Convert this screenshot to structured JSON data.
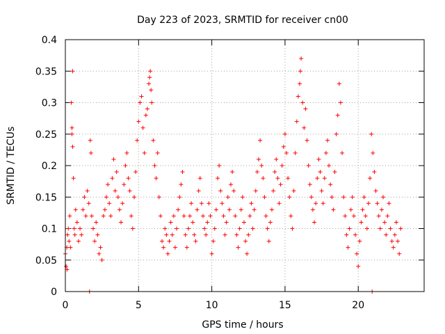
{
  "chart_data": {
    "type": "scatter",
    "title": "Day 223 of 2023, SRMTID for receiver cn00",
    "xlabel": "GPS time / hours",
    "ylabel": "SRMTID / TECUs",
    "xlim": [
      0,
      24.5
    ],
    "ylim": [
      0,
      0.4
    ],
    "xticks": [
      0,
      5,
      10,
      15,
      20
    ],
    "xtick_labels": [
      "0",
      "5",
      "10",
      "15",
      "20"
    ],
    "yticks": [
      0,
      0.05,
      0.1,
      0.15,
      0.2,
      0.25,
      0.3,
      0.35,
      0.4
    ],
    "ytick_labels": [
      "0",
      "0.05",
      "0.1",
      "0.15",
      "0.2",
      "0.25",
      "0.3",
      "0.35",
      "0.4"
    ],
    "grid": true,
    "marker": "plus",
    "series": [
      {
        "name": "cn00",
        "color": "#ff0000",
        "points": [
          [
            0.0,
            0.06
          ],
          [
            0.05,
            0.04
          ],
          [
            0.1,
            0.07
          ],
          [
            0.12,
            0.035
          ],
          [
            0.15,
            0.09
          ],
          [
            0.2,
            0.1
          ],
          [
            0.25,
            0.08
          ],
          [
            0.3,
            0.12
          ],
          [
            0.35,
            0.07
          ],
          [
            0.4,
            0.3
          ],
          [
            0.45,
            0.26
          ],
          [
            0.45,
            0.25
          ],
          [
            0.5,
            0.35
          ],
          [
            0.5,
            0.23
          ],
          [
            0.55,
            0.18
          ],
          [
            0.6,
            0.1
          ],
          [
            0.65,
            0.09
          ],
          [
            0.7,
            0.13
          ],
          [
            0.8,
            0.11
          ],
          [
            0.9,
            0.08
          ],
          [
            1.0,
            0.1
          ],
          [
            1.1,
            0.09
          ],
          [
            1.2,
            0.13
          ],
          [
            1.3,
            0.15
          ],
          [
            1.4,
            0.12
          ],
          [
            1.5,
            0.16
          ],
          [
            1.6,
            0.14
          ],
          [
            1.65,
            0.0
          ],
          [
            1.7,
            0.24
          ],
          [
            1.75,
            0.22
          ],
          [
            1.8,
            0.12
          ],
          [
            1.9,
            0.1
          ],
          [
            2.0,
            0.08
          ],
          [
            2.1,
            0.11
          ],
          [
            2.2,
            0.09
          ],
          [
            2.3,
            0.06
          ],
          [
            2.4,
            0.07
          ],
          [
            2.5,
            0.05
          ],
          [
            2.6,
            0.12
          ],
          [
            2.7,
            0.13
          ],
          [
            2.8,
            0.15
          ],
          [
            2.9,
            0.17
          ],
          [
            3.0,
            0.14
          ],
          [
            3.1,
            0.12
          ],
          [
            3.2,
            0.18
          ],
          [
            3.3,
            0.21
          ],
          [
            3.4,
            0.16
          ],
          [
            3.5,
            0.19
          ],
          [
            3.6,
            0.15
          ],
          [
            3.7,
            0.13
          ],
          [
            3.8,
            0.11
          ],
          [
            3.9,
            0.14
          ],
          [
            4.0,
            0.17
          ],
          [
            4.1,
            0.2
          ],
          [
            4.2,
            0.22
          ],
          [
            4.3,
            0.18
          ],
          [
            4.4,
            0.16
          ],
          [
            4.5,
            0.12
          ],
          [
            4.6,
            0.1
          ],
          [
            4.7,
            0.15
          ],
          [
            4.8,
            0.19
          ],
          [
            4.9,
            0.24
          ],
          [
            5.0,
            0.27
          ],
          [
            5.1,
            0.3
          ],
          [
            5.2,
            0.31
          ],
          [
            5.3,
            0.26
          ],
          [
            5.4,
            0.22
          ],
          [
            5.5,
            0.28
          ],
          [
            5.6,
            0.29
          ],
          [
            5.7,
            0.33
          ],
          [
            5.75,
            0.34
          ],
          [
            5.8,
            0.35
          ],
          [
            5.85,
            0.32
          ],
          [
            5.9,
            0.3
          ],
          [
            6.0,
            0.24
          ],
          [
            6.1,
            0.2
          ],
          [
            6.2,
            0.18
          ],
          [
            6.3,
            0.22
          ],
          [
            6.4,
            0.15
          ],
          [
            6.5,
            0.12
          ],
          [
            6.6,
            0.08
          ],
          [
            6.7,
            0.07
          ],
          [
            6.8,
            0.1
          ],
          [
            6.9,
            0.09
          ],
          [
            7.0,
            0.06
          ],
          [
            7.1,
            0.08
          ],
          [
            7.2,
            0.11
          ],
          [
            7.3,
            0.09
          ],
          [
            7.4,
            0.12
          ],
          [
            7.5,
            0.07
          ],
          [
            7.6,
            0.1
          ],
          [
            7.7,
            0.13
          ],
          [
            7.8,
            0.15
          ],
          [
            7.9,
            0.17
          ],
          [
            8.0,
            0.19
          ],
          [
            8.1,
            0.12
          ],
          [
            8.2,
            0.09
          ],
          [
            8.3,
            0.07
          ],
          [
            8.4,
            0.1
          ],
          [
            8.5,
            0.12
          ],
          [
            8.6,
            0.14
          ],
          [
            8.7,
            0.11
          ],
          [
            8.8,
            0.09
          ],
          [
            8.9,
            0.08
          ],
          [
            9.0,
            0.13
          ],
          [
            9.1,
            0.16
          ],
          [
            9.2,
            0.18
          ],
          [
            9.3,
            0.14
          ],
          [
            9.4,
            0.12
          ],
          [
            9.5,
            0.1
          ],
          [
            9.6,
            0.09
          ],
          [
            9.7,
            0.11
          ],
          [
            9.8,
            0.14
          ],
          [
            9.9,
            0.12
          ],
          [
            10.0,
            0.06
          ],
          [
            10.1,
            0.08
          ],
          [
            10.2,
            0.1
          ],
          [
            10.3,
            0.13
          ],
          [
            10.4,
            0.18
          ],
          [
            10.5,
            0.2
          ],
          [
            10.6,
            0.16
          ],
          [
            10.7,
            0.14
          ],
          [
            10.8,
            0.12
          ],
          [
            10.9,
            0.09
          ],
          [
            11.0,
            0.11
          ],
          [
            11.1,
            0.15
          ],
          [
            11.2,
            0.13
          ],
          [
            11.3,
            0.17
          ],
          [
            11.4,
            0.19
          ],
          [
            11.5,
            0.16
          ],
          [
            11.6,
            0.12
          ],
          [
            11.7,
            0.09
          ],
          [
            11.8,
            0.07
          ],
          [
            11.9,
            0.1
          ],
          [
            12.0,
            0.13
          ],
          [
            12.1,
            0.15
          ],
          [
            12.2,
            0.11
          ],
          [
            12.3,
            0.08
          ],
          [
            12.4,
            0.06
          ],
          [
            12.5,
            0.09
          ],
          [
            12.6,
            0.12
          ],
          [
            12.7,
            0.14
          ],
          [
            12.8,
            0.1
          ],
          [
            12.9,
            0.13
          ],
          [
            13.0,
            0.16
          ],
          [
            13.1,
            0.19
          ],
          [
            13.2,
            0.21
          ],
          [
            13.3,
            0.24
          ],
          [
            13.4,
            0.2
          ],
          [
            13.5,
            0.18
          ],
          [
            13.6,
            0.15
          ],
          [
            13.7,
            0.12
          ],
          [
            13.8,
            0.1
          ],
          [
            13.9,
            0.08
          ],
          [
            14.0,
            0.11
          ],
          [
            14.1,
            0.13
          ],
          [
            14.2,
            0.16
          ],
          [
            14.3,
            0.19
          ],
          [
            14.4,
            0.21
          ],
          [
            14.5,
            0.18
          ],
          [
            14.6,
            0.14
          ],
          [
            14.7,
            0.17
          ],
          [
            14.8,
            0.2
          ],
          [
            14.9,
            0.23
          ],
          [
            15.0,
            0.25
          ],
          [
            15.1,
            0.22
          ],
          [
            15.2,
            0.18
          ],
          [
            15.3,
            0.15
          ],
          [
            15.4,
            0.12
          ],
          [
            15.5,
            0.1
          ],
          [
            15.6,
            0.16
          ],
          [
            15.7,
            0.22
          ],
          [
            15.8,
            0.27
          ],
          [
            15.9,
            0.31
          ],
          [
            16.0,
            0.33
          ],
          [
            16.05,
            0.35
          ],
          [
            16.1,
            0.37
          ],
          [
            16.2,
            0.3
          ],
          [
            16.3,
            0.26
          ],
          [
            16.4,
            0.29
          ],
          [
            16.5,
            0.24
          ],
          [
            16.6,
            0.2
          ],
          [
            16.7,
            0.17
          ],
          [
            16.8,
            0.15
          ],
          [
            16.9,
            0.13
          ],
          [
            17.0,
            0.11
          ],
          [
            17.1,
            0.14
          ],
          [
            17.2,
            0.18
          ],
          [
            17.3,
            0.21
          ],
          [
            17.4,
            0.19
          ],
          [
            17.5,
            0.16
          ],
          [
            17.6,
            0.14
          ],
          [
            17.7,
            0.18
          ],
          [
            17.8,
            0.22
          ],
          [
            17.9,
            0.24
          ],
          [
            18.0,
            0.2
          ],
          [
            18.1,
            0.17
          ],
          [
            18.2,
            0.15
          ],
          [
            18.3,
            0.13
          ],
          [
            18.4,
            0.19
          ],
          [
            18.5,
            0.25
          ],
          [
            18.6,
            0.28
          ],
          [
            18.7,
            0.33
          ],
          [
            18.8,
            0.3
          ],
          [
            18.9,
            0.22
          ],
          [
            19.0,
            0.15
          ],
          [
            19.1,
            0.12
          ],
          [
            19.2,
            0.09
          ],
          [
            19.3,
            0.07
          ],
          [
            19.4,
            0.1
          ],
          [
            19.5,
            0.13
          ],
          [
            19.6,
            0.15
          ],
          [
            19.7,
            0.12
          ],
          [
            19.8,
            0.09
          ],
          [
            19.9,
            0.06
          ],
          [
            20.0,
            0.04
          ],
          [
            20.1,
            0.08
          ],
          [
            20.2,
            0.11
          ],
          [
            20.3,
            0.13
          ],
          [
            20.4,
            0.15
          ],
          [
            20.5,
            0.12
          ],
          [
            20.6,
            0.1
          ],
          [
            20.7,
            0.14
          ],
          [
            20.8,
            0.18
          ],
          [
            20.9,
            0.25
          ],
          [
            20.95,
            0.0
          ],
          [
            21.0,
            0.22
          ],
          [
            21.1,
            0.19
          ],
          [
            21.2,
            0.16
          ],
          [
            21.3,
            0.14
          ],
          [
            21.4,
            0.12
          ],
          [
            21.5,
            0.1
          ],
          [
            21.6,
            0.13
          ],
          [
            21.7,
            0.15
          ],
          [
            21.8,
            0.11
          ],
          [
            21.9,
            0.09
          ],
          [
            22.0,
            0.12
          ],
          [
            22.1,
            0.14
          ],
          [
            22.2,
            0.1
          ],
          [
            22.3,
            0.08
          ],
          [
            22.4,
            0.07
          ],
          [
            22.5,
            0.09
          ],
          [
            22.6,
            0.11
          ],
          [
            22.7,
            0.08
          ],
          [
            22.8,
            0.06
          ],
          [
            22.9,
            0.1
          ]
        ]
      }
    ]
  }
}
